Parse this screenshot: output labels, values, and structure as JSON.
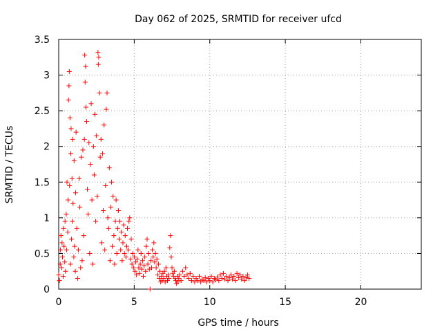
{
  "chart_data": {
    "type": "scatter",
    "title": "Day 062 of 2025, SRMTID for receiver ufcd",
    "xlabel": "GPS time / hours",
    "ylabel": "SRMTID / TECUs",
    "xlim": [
      0,
      24
    ],
    "ylim": [
      0,
      3.5
    ],
    "xticks": [
      0,
      5,
      10,
      15,
      20
    ],
    "xtick_labels": [
      "0",
      "5",
      "10",
      "15",
      "20"
    ],
    "yticks": [
      0,
      0.5,
      1,
      1.5,
      2,
      2.5,
      3,
      3.5
    ],
    "ytick_labels": [
      "0",
      "0.5",
      "1",
      "1.5",
      "2",
      "2.5",
      "3",
      "3.5"
    ],
    "grid": true,
    "marker": "+",
    "color": "#ff0000",
    "series": [
      {
        "name": "SRMTID",
        "points": [
          [
            0.0,
            0.2
          ],
          [
            0.05,
            0.12
          ],
          [
            0.1,
            0.35
          ],
          [
            0.12,
            0.55
          ],
          [
            0.15,
            0.75
          ],
          [
            0.2,
            0.3
          ],
          [
            0.22,
            0.65
          ],
          [
            0.25,
            0.45
          ],
          [
            0.3,
            0.18
          ],
          [
            0.32,
            0.85
          ],
          [
            0.35,
            0.6
          ],
          [
            0.4,
            0.38
          ],
          [
            0.42,
            0.95
          ],
          [
            0.45,
            0.25
          ],
          [
            0.5,
            1.05
          ],
          [
            0.52,
            0.55
          ],
          [
            0.55,
            1.5
          ],
          [
            0.6,
            0.8
          ],
          [
            0.62,
            1.25
          ],
          [
            0.65,
            2.65
          ],
          [
            0.68,
            2.85
          ],
          [
            0.7,
            3.05
          ],
          [
            0.72,
            1.45
          ],
          [
            0.75,
            2.4
          ],
          [
            0.78,
            0.35
          ],
          [
            0.8,
            1.9
          ],
          [
            0.82,
            2.25
          ],
          [
            0.85,
            0.7
          ],
          [
            0.88,
            1.55
          ],
          [
            0.9,
            0.95
          ],
          [
            0.92,
            2.1
          ],
          [
            0.95,
            1.2
          ],
          [
            1.0,
            0.45
          ],
          [
            1.02,
            1.8
          ],
          [
            1.05,
            0.6
          ],
          [
            1.1,
            0.25
          ],
          [
            1.12,
            1.35
          ],
          [
            1.15,
            2.2
          ],
          [
            1.2,
            0.85
          ],
          [
            1.25,
            0.15
          ],
          [
            1.3,
            0.55
          ],
          [
            1.35,
            1.55
          ],
          [
            1.4,
            1.15
          ],
          [
            1.45,
            0.3
          ],
          [
            1.5,
            1.85
          ],
          [
            1.55,
            0.4
          ],
          [
            1.6,
            1.95
          ],
          [
            1.65,
            0.75
          ],
          [
            1.7,
            2.1
          ],
          [
            1.72,
            3.28
          ],
          [
            1.75,
            2.9
          ],
          [
            1.78,
            3.12
          ],
          [
            1.8,
            2.55
          ],
          [
            1.85,
            2.35
          ],
          [
            1.9,
            1.4
          ],
          [
            1.95,
            1.05
          ],
          [
            2.0,
            2.05
          ],
          [
            2.05,
            0.5
          ],
          [
            2.1,
            1.75
          ],
          [
            2.15,
            2.6
          ],
          [
            2.2,
            1.25
          ],
          [
            2.25,
            0.35
          ],
          [
            2.3,
            2.0
          ],
          [
            2.35,
            1.6
          ],
          [
            2.4,
            2.45
          ],
          [
            2.45,
            0.95
          ],
          [
            2.5,
            2.15
          ],
          [
            2.55,
            1.3
          ],
          [
            2.6,
            3.32
          ],
          [
            2.62,
            3.15
          ],
          [
            2.65,
            3.25
          ],
          [
            2.7,
            2.75
          ],
          [
            2.75,
            1.85
          ],
          [
            2.8,
            2.1
          ],
          [
            2.85,
            0.65
          ],
          [
            2.9,
            1.9
          ],
          [
            2.95,
            1.1
          ],
          [
            3.0,
            2.3
          ],
          [
            3.05,
            0.55
          ],
          [
            3.1,
            1.45
          ],
          [
            3.15,
            2.52
          ],
          [
            3.2,
            2.75
          ],
          [
            3.25,
            1.0
          ],
          [
            3.3,
            0.85
          ],
          [
            3.35,
            1.7
          ],
          [
            3.4,
            0.4
          ],
          [
            3.45,
            1.15
          ],
          [
            3.5,
            1.5
          ],
          [
            3.55,
            0.6
          ],
          [
            3.6,
            1.3
          ],
          [
            3.65,
            0.75
          ],
          [
            3.7,
            0.35
          ],
          [
            3.75,
            0.95
          ],
          [
            3.8,
            1.25
          ],
          [
            3.85,
            0.5
          ],
          [
            3.9,
            0.85
          ],
          [
            3.95,
            1.1
          ],
          [
            4.0,
            0.7
          ],
          [
            4.05,
            0.95
          ],
          [
            4.1,
            0.55
          ],
          [
            4.15,
            0.8
          ],
          [
            4.2,
            0.4
          ],
          [
            4.25,
            0.65
          ],
          [
            4.3,
            0.9
          ],
          [
            4.35,
            0.5
          ],
          [
            4.4,
            0.75
          ],
          [
            4.45,
            0.45
          ],
          [
            4.5,
            0.6
          ],
          [
            4.55,
            0.85
          ],
          [
            4.6,
            0.55
          ],
          [
            4.65,
            0.95
          ],
          [
            4.7,
            1.0
          ],
          [
            4.75,
            0.42
          ],
          [
            4.8,
            0.7
          ],
          [
            4.85,
            0.35
          ],
          [
            4.9,
            0.5
          ],
          [
            4.95,
            0.3
          ],
          [
            5.0,
            0.45
          ],
          [
            5.05,
            0.25
          ],
          [
            5.1,
            0.38
          ],
          [
            5.15,
            0.2
          ],
          [
            5.2,
            0.42
          ],
          [
            5.25,
            0.55
          ],
          [
            5.3,
            0.3
          ],
          [
            5.35,
            0.22
          ],
          [
            5.4,
            0.35
          ],
          [
            5.45,
            0.5
          ],
          [
            5.5,
            0.28
          ],
          [
            5.55,
            0.4
          ],
          [
            5.6,
            0.18
          ],
          [
            5.65,
            0.33
          ],
          [
            5.7,
            0.45
          ],
          [
            5.75,
            0.25
          ],
          [
            5.8,
            0.6
          ],
          [
            5.85,
            0.7
          ],
          [
            5.9,
            0.35
          ],
          [
            5.95,
            0.5
          ],
          [
            6.0,
            0.28
          ],
          [
            6.05,
            0.0
          ],
          [
            6.1,
            0.4
          ],
          [
            6.15,
            0.3
          ],
          [
            6.2,
            0.55
          ],
          [
            6.25,
            0.45
          ],
          [
            6.3,
            0.65
          ],
          [
            6.35,
            0.38
          ],
          [
            6.4,
            0.5
          ],
          [
            6.45,
            0.3
          ],
          [
            6.5,
            0.42
          ],
          [
            6.55,
            0.2
          ],
          [
            6.6,
            0.35
          ],
          [
            6.65,
            0.15
          ],
          [
            6.7,
            0.25
          ],
          [
            6.75,
            0.1
          ],
          [
            6.8,
            0.18
          ],
          [
            6.85,
            0.12
          ],
          [
            6.9,
            0.22
          ],
          [
            6.95,
            0.15
          ],
          [
            7.0,
            0.25
          ],
          [
            7.05,
            0.1
          ],
          [
            7.1,
            0.3
          ],
          [
            7.15,
            0.18
          ],
          [
            7.2,
            0.12
          ],
          [
            7.25,
            0.2
          ],
          [
            7.3,
            0.15
          ],
          [
            7.35,
            0.58
          ],
          [
            7.4,
            0.75
          ],
          [
            7.45,
            0.45
          ],
          [
            7.5,
            0.3
          ],
          [
            7.55,
            0.22
          ],
          [
            7.6,
            0.18
          ],
          [
            7.65,
            0.25
          ],
          [
            7.7,
            0.15
          ],
          [
            7.75,
            0.12
          ],
          [
            7.8,
            0.08
          ],
          [
            7.85,
            0.18
          ],
          [
            7.9,
            0.1
          ],
          [
            7.95,
            0.15
          ],
          [
            8.0,
            0.2
          ],
          [
            8.1,
            0.12
          ],
          [
            8.2,
            0.25
          ],
          [
            8.3,
            0.18
          ],
          [
            8.4,
            0.3
          ],
          [
            8.5,
            0.2
          ],
          [
            8.6,
            0.15
          ],
          [
            8.7,
            0.22
          ],
          [
            8.8,
            0.12
          ],
          [
            8.9,
            0.18
          ],
          [
            9.0,
            0.1
          ],
          [
            9.1,
            0.15
          ],
          [
            9.2,
            0.12
          ],
          [
            9.3,
            0.18
          ],
          [
            9.4,
            0.1
          ],
          [
            9.5,
            0.14
          ],
          [
            9.6,
            0.12
          ],
          [
            9.7,
            0.16
          ],
          [
            9.8,
            0.1
          ],
          [
            9.9,
            0.15
          ],
          [
            10.0,
            0.12
          ],
          [
            10.1,
            0.18
          ],
          [
            10.2,
            0.1
          ],
          [
            10.3,
            0.15
          ],
          [
            10.4,
            0.13
          ],
          [
            10.5,
            0.17
          ],
          [
            10.6,
            0.12
          ],
          [
            10.7,
            0.2
          ],
          [
            10.8,
            0.15
          ],
          [
            10.9,
            0.22
          ],
          [
            11.0,
            0.14
          ],
          [
            11.1,
            0.18
          ],
          [
            11.2,
            0.12
          ],
          [
            11.3,
            0.16
          ],
          [
            11.4,
            0.2
          ],
          [
            11.5,
            0.14
          ],
          [
            11.6,
            0.18
          ],
          [
            11.7,
            0.12
          ],
          [
            11.8,
            0.22
          ],
          [
            11.9,
            0.16
          ],
          [
            12.0,
            0.2
          ],
          [
            12.1,
            0.14
          ],
          [
            12.2,
            0.18
          ],
          [
            12.3,
            0.12
          ],
          [
            12.4,
            0.16
          ],
          [
            12.5,
            0.2
          ],
          [
            12.6,
            0.15
          ]
        ]
      }
    ]
  }
}
